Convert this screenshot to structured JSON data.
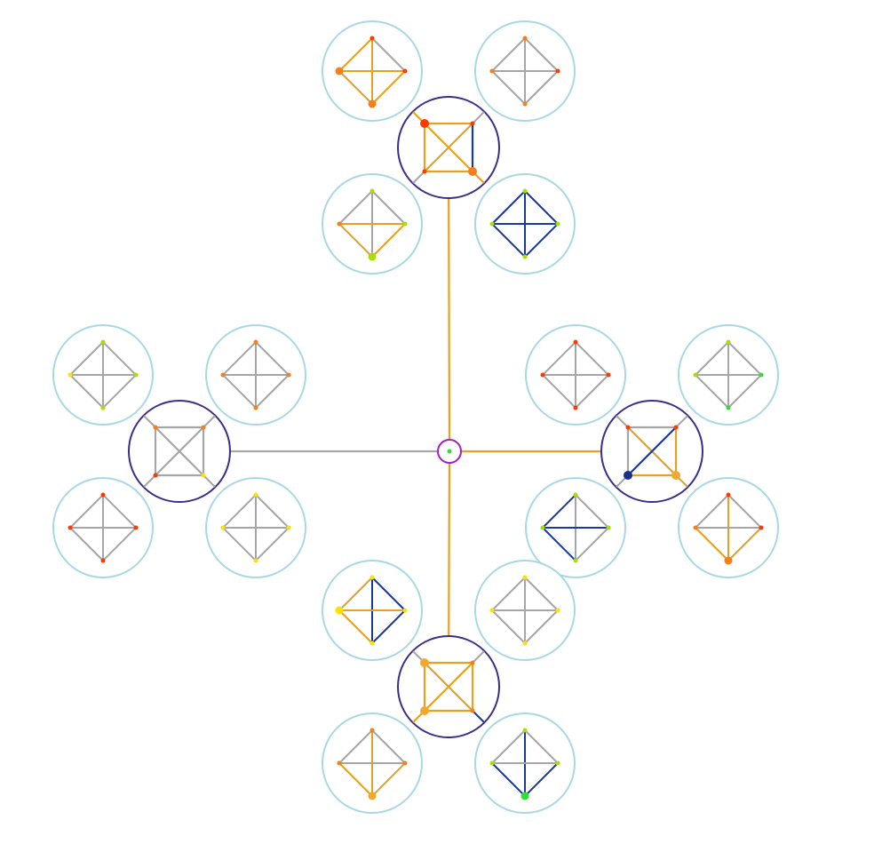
{
  "colors": {
    "background": "#ffffff",
    "center_ring": "#a020c0",
    "cluster_ring": "#3b2e8a",
    "leaf_ring": "#a8d8e6",
    "edge_gray": "#a6a6a6",
    "edge_orange": "#e8a020",
    "edge_blue": "#1a3a9a",
    "node_red": "#ff3a00",
    "node_orange": "#f57f1e",
    "node_gold": "#f0a830",
    "node_yellow": "#ffe000",
    "node_lime": "#a6e000",
    "node_green": "#30e030",
    "node_navy": "#1a2e8a"
  },
  "root": {
    "node_color": "node_green"
  },
  "clusters": [
    {
      "id": "top",
      "link_color": "edge_orange",
      "node_colors": [
        "node_red",
        "node_red",
        "node_orange",
        "node_red"
      ],
      "node_large": [
        true,
        false,
        true,
        false
      ],
      "edges": {
        "top": "edge_orange",
        "bottom": "edge_orange",
        "left": "edge_orange",
        "right": "edge_blue",
        "diag1": "edge_orange",
        "diag2": "edge_orange"
      },
      "connectors": [
        "edge_orange",
        "edge_gray",
        "edge_orange",
        "edge_gray"
      ],
      "leaves": [
        {
          "node_colors": [
            "node_red",
            "node_red",
            "node_orange",
            "node_orange"
          ],
          "node_large": [
            false,
            false,
            true,
            true
          ],
          "edges": {
            "tl": "edge_orange",
            "tr": "edge_gray",
            "br": "edge_orange",
            "bl": "edge_orange",
            "v": "edge_orange",
            "h": "edge_orange"
          }
        },
        {
          "node_colors": [
            "node_orange",
            "node_red",
            "node_orange",
            "node_orange"
          ],
          "node_large": [
            false,
            false,
            false,
            false
          ],
          "edges": {
            "tl": "edge_gray",
            "tr": "edge_gray",
            "br": "edge_gray",
            "bl": "edge_gray",
            "v": "edge_gray",
            "h": "edge_gray"
          }
        },
        {
          "node_colors": [
            "node_lime",
            "node_lime",
            "node_lime",
            "node_orange"
          ],
          "node_large": [
            false,
            false,
            true,
            false
          ],
          "edges": {
            "tl": "edge_gray",
            "tr": "edge_gray",
            "br": "edge_orange",
            "bl": "edge_orange",
            "v": "edge_gray",
            "h": "edge_orange"
          }
        },
        {
          "node_colors": [
            "node_lime",
            "node_lime",
            "node_lime",
            "node_lime"
          ],
          "node_large": [
            false,
            false,
            false,
            false
          ],
          "edges": {
            "tl": "edge_blue",
            "tr": "edge_blue",
            "br": "edge_blue",
            "bl": "edge_blue",
            "v": "edge_blue",
            "h": "edge_blue"
          }
        }
      ]
    },
    {
      "id": "left",
      "link_color": "edge_gray",
      "node_colors": [
        "node_orange",
        "node_orange",
        "node_yellow",
        "node_red"
      ],
      "node_large": [
        false,
        false,
        false,
        false
      ],
      "edges": {
        "top": "edge_gray",
        "bottom": "edge_gray",
        "left": "edge_gray",
        "right": "edge_gray",
        "diag1": "edge_gray",
        "diag2": "edge_gray"
      },
      "connectors": [
        "edge_gray",
        "edge_gray",
        "edge_gray",
        "edge_gray"
      ],
      "leaves": [
        {
          "node_colors": [
            "node_lime",
            "node_lime",
            "node_lime",
            "node_yellow"
          ],
          "node_large": [
            false,
            false,
            false,
            false
          ],
          "edges": {
            "tl": "edge_gray",
            "tr": "edge_gray",
            "br": "edge_gray",
            "bl": "edge_gray",
            "v": "edge_gray",
            "h": "edge_gray"
          }
        },
        {
          "node_colors": [
            "node_orange",
            "node_orange",
            "node_orange",
            "node_orange"
          ],
          "node_large": [
            false,
            false,
            false,
            false
          ],
          "edges": {
            "tl": "edge_gray",
            "tr": "edge_gray",
            "br": "edge_gray",
            "bl": "edge_gray",
            "v": "edge_gray",
            "h": "edge_gray"
          }
        },
        {
          "node_colors": [
            "node_red",
            "node_red",
            "node_red",
            "node_red"
          ],
          "node_large": [
            false,
            false,
            false,
            false
          ],
          "edges": {
            "tl": "edge_gray",
            "tr": "edge_gray",
            "br": "edge_gray",
            "bl": "edge_gray",
            "v": "edge_gray",
            "h": "edge_gray"
          }
        },
        {
          "node_colors": [
            "node_yellow",
            "node_yellow",
            "node_yellow",
            "node_yellow"
          ],
          "node_large": [
            false,
            false,
            false,
            false
          ],
          "edges": {
            "tl": "edge_gray",
            "tr": "edge_gray",
            "br": "edge_gray",
            "bl": "edge_gray",
            "v": "edge_gray",
            "h": "edge_gray"
          }
        }
      ]
    },
    {
      "id": "right",
      "link_color": "edge_orange",
      "node_colors": [
        "node_red",
        "node_red",
        "node_gold",
        "node_navy"
      ],
      "node_large": [
        false,
        false,
        true,
        true
      ],
      "edges": {
        "top": "edge_gray",
        "bottom": "edge_orange",
        "left": "edge_gray",
        "right": "edge_orange",
        "diag1": "edge_orange",
        "diag2": "edge_blue"
      },
      "connectors": [
        "edge_gray",
        "edge_gray",
        "edge_orange",
        "edge_gray"
      ],
      "leaves": [
        {
          "node_colors": [
            "node_red",
            "node_red",
            "node_red",
            "node_red"
          ],
          "node_large": [
            false,
            false,
            false,
            false
          ],
          "edges": {
            "tl": "edge_gray",
            "tr": "edge_gray",
            "br": "edge_gray",
            "bl": "edge_gray",
            "v": "edge_gray",
            "h": "edge_gray"
          }
        },
        {
          "node_colors": [
            "node_lime",
            "node_green",
            "node_green",
            "node_lime"
          ],
          "node_large": [
            false,
            false,
            false,
            false
          ],
          "edges": {
            "tl": "edge_gray",
            "tr": "edge_gray",
            "br": "edge_gray",
            "bl": "edge_gray",
            "v": "edge_gray",
            "h": "edge_gray"
          }
        },
        {
          "node_colors": [
            "node_lime",
            "node_lime",
            "node_lime",
            "node_lime"
          ],
          "node_large": [
            false,
            false,
            false,
            false
          ],
          "edges": {
            "tl": "edge_blue",
            "tr": "edge_gray",
            "br": "edge_gray",
            "bl": "edge_blue",
            "v": "edge_gray",
            "h": "edge_blue"
          }
        },
        {
          "node_colors": [
            "node_red",
            "node_red",
            "node_orange",
            "node_orange"
          ],
          "node_large": [
            false,
            false,
            true,
            false
          ],
          "edges": {
            "tl": "edge_gray",
            "tr": "edge_gray",
            "br": "edge_orange",
            "bl": "edge_orange",
            "v": "edge_orange",
            "h": "edge_gray"
          }
        }
      ]
    },
    {
      "id": "bottom",
      "link_color": "edge_orange",
      "node_colors": [
        "node_gold",
        "node_orange",
        "node_orange",
        "node_gold"
      ],
      "node_large": [
        true,
        false,
        false,
        true
      ],
      "edges": {
        "top": "edge_orange",
        "bottom": "edge_orange",
        "left": "edge_orange",
        "right": "edge_orange",
        "diag1": "edge_orange",
        "diag2": "edge_orange"
      },
      "connectors": [
        "edge_gray",
        "edge_gray",
        "edge_blue",
        "edge_orange"
      ],
      "leaves": [
        {
          "node_colors": [
            "node_yellow",
            "node_yellow",
            "node_yellow",
            "node_yellow"
          ],
          "node_large": [
            false,
            false,
            false,
            true
          ],
          "edges": {
            "tl": "edge_orange",
            "tr": "edge_blue",
            "br": "edge_blue",
            "bl": "edge_orange",
            "v": "edge_blue",
            "h": "edge_orange"
          }
        },
        {
          "node_colors": [
            "node_yellow",
            "node_yellow",
            "node_yellow",
            "node_yellow"
          ],
          "node_large": [
            false,
            false,
            false,
            false
          ],
          "edges": {
            "tl": "edge_gray",
            "tr": "edge_gray",
            "br": "edge_gray",
            "bl": "edge_gray",
            "v": "edge_gray",
            "h": "edge_gray"
          }
        },
        {
          "node_colors": [
            "node_orange",
            "node_orange",
            "node_gold",
            "node_orange"
          ],
          "node_large": [
            false,
            false,
            true,
            false
          ],
          "edges": {
            "tl": "edge_gray",
            "tr": "edge_gray",
            "br": "edge_orange",
            "bl": "edge_orange",
            "v": "edge_orange",
            "h": "edge_gray"
          }
        },
        {
          "node_colors": [
            "node_lime",
            "node_lime",
            "node_green",
            "node_lime"
          ],
          "node_large": [
            false,
            false,
            true,
            false
          ],
          "edges": {
            "tl": "edge_gray",
            "tr": "edge_gray",
            "br": "edge_blue",
            "bl": "edge_blue",
            "v": "edge_blue",
            "h": "edge_gray"
          }
        }
      ]
    }
  ]
}
